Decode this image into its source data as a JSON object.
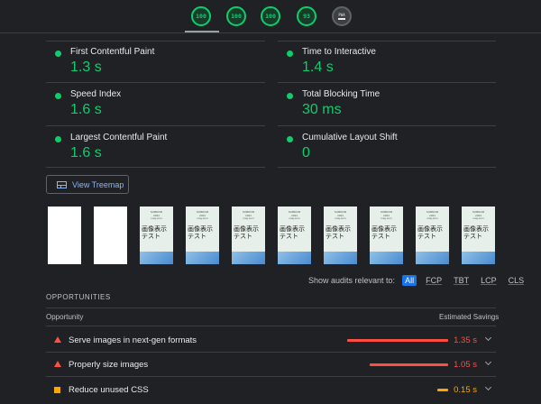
{
  "scores": [
    {
      "id": "performance",
      "value": "100"
    },
    {
      "id": "accessibility",
      "value": "100"
    },
    {
      "id": "best-practices",
      "value": "100"
    },
    {
      "id": "seo",
      "value": "93"
    },
    {
      "id": "pwa",
      "value": "PWA"
    }
  ],
  "colors": {
    "pass": "#0cce6b",
    "fail": "#ff4e42",
    "average": "#ffa400",
    "link": "#8ab4f8"
  },
  "metrics": [
    {
      "label": "First Contentful Paint",
      "value": "1.3 s"
    },
    {
      "label": "Time to Interactive",
      "value": "1.4 s"
    },
    {
      "label": "Speed Index",
      "value": "1.6 s"
    },
    {
      "label": "Total Blocking Time",
      "value": "30 ms"
    },
    {
      "label": "Largest Contentful Paint",
      "value": "1.6 s"
    },
    {
      "label": "Cumulative Layout Shift",
      "value": "0"
    }
  ],
  "treemap_button": {
    "label": "View Treemap",
    "icon": "treemap-icon"
  },
  "filmstrip": {
    "frame_header": "SUBDOM\n2024\nmay.com",
    "frame_title": "画像表示テスト"
  },
  "filter": {
    "label": "Show audits relevant to:",
    "options": [
      "All",
      "FCP",
      "TBT",
      "LCP",
      "CLS"
    ],
    "selected": "All"
  },
  "opportunities": {
    "title": "OPPORTUNITIES",
    "col_opportunity": "Opportunity",
    "col_savings": "Estimated Savings",
    "items": [
      {
        "title": "Serve images in next-gen formats",
        "savings": "1.35 s",
        "savings_seconds": 1.35,
        "severity": "fail"
      },
      {
        "title": "Properly size images",
        "savings": "1.05 s",
        "savings_seconds": 1.05,
        "severity": "fail"
      },
      {
        "title": "Reduce unused CSS",
        "savings": "0.15 s",
        "savings_seconds": 0.15,
        "severity": "average"
      }
    ]
  }
}
